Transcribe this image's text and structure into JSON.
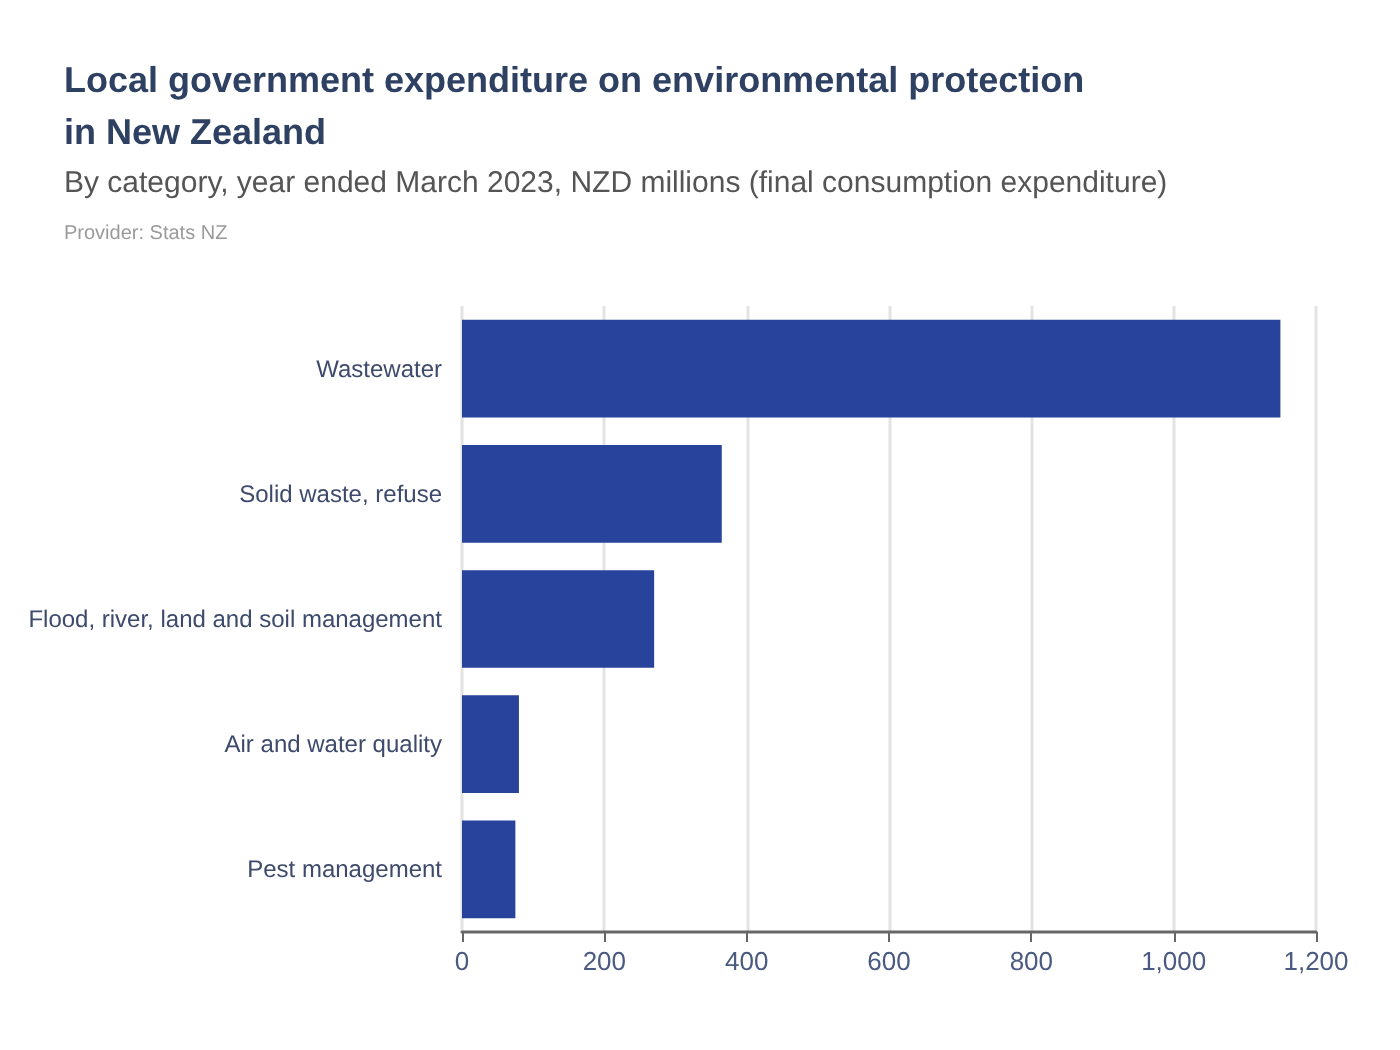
{
  "chart_data": {
    "type": "bar",
    "orientation": "horizontal",
    "title": "Local government expenditure on environmental protection in New Zealand",
    "subtitle": "By category, year ended March 2023, NZD millions (final consumption expenditure)",
    "annotations": [
      "Provider: Stats NZ"
    ],
    "categories": [
      "Wastewater",
      "Solid waste, refuse",
      "Flood, river, land and soil management",
      "Air and water quality",
      "Pest management"
    ],
    "values": [
      1150,
      365,
      270,
      80,
      75
    ],
    "color": "#27439b",
    "xlim": [
      0,
      1200
    ],
    "xticks": [
      0,
      200,
      400,
      600,
      800,
      {
        "value": 1000,
        "label": "1,000"
      },
      {
        "value": 1200,
        "label": "1,200"
      }
    ],
    "grid": "x"
  }
}
